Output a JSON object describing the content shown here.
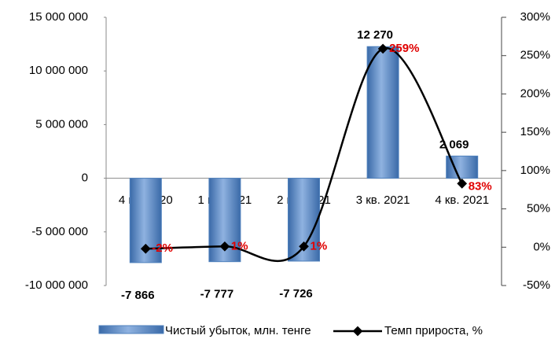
{
  "chart_data": {
    "type": "bar-line",
    "categories": [
      "4 кв. 2020",
      "1 кв. 2021",
      "2 кв. 2021",
      "3 кв. 2021",
      "4 кв. 2021"
    ],
    "series": [
      {
        "name": "Чистый убыток, млн. тенге",
        "type": "bar",
        "color": "#4f81bd",
        "values": [
          -7866000,
          -7777000,
          -7726000,
          12270000,
          2069000
        ],
        "value_labels": [
          "-7 866",
          "-7 777",
          "-7 726",
          "12 270",
          "2 069"
        ]
      },
      {
        "name": "Темп прироста, %",
        "type": "line",
        "axis": "y2",
        "color": "#000000",
        "values": [
          -2,
          1,
          1,
          259,
          83
        ],
        "value_labels": [
          "-2%",
          "1%",
          "1%",
          "259%",
          "83%"
        ]
      }
    ],
    "ylim": [
      -10000000,
      15000000
    ],
    "yticks": [
      {
        "value": -10000000,
        "label": "-10 000 000"
      },
      {
        "value": -5000000,
        "label": "-5 000 000"
      },
      0,
      {
        "value": 5000000,
        "label": "5 000 000"
      },
      {
        "value": 10000000,
        "label": "10 000 000"
      },
      {
        "value": 15000000,
        "label": "15 000 000"
      }
    ],
    "y2lim": [
      -50,
      300
    ],
    "y2ticks": [
      {
        "value": -50,
        "label": "-50%"
      },
      {
        "value": 0,
        "label": "0%"
      },
      {
        "value": 50,
        "label": "50%"
      },
      {
        "value": 100,
        "label": "100%"
      },
      {
        "value": 150,
        "label": "150%"
      },
      {
        "value": 200,
        "label": "200%"
      },
      {
        "value": 250,
        "label": "250%"
      },
      {
        "value": 300,
        "label": "300%"
      }
    ],
    "legend": "bottom",
    "grid": false
  }
}
